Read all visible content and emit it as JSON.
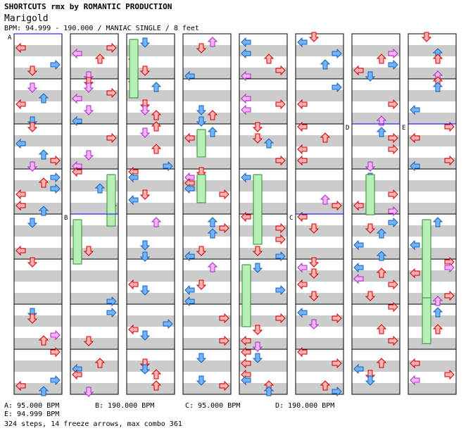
{
  "header": {
    "title": "SHORTCUTS rmx by ROMANTIC PRODUCTION",
    "song": "Marigold",
    "bpm_line": "BPM: 94.999 - 190.000 / MANIAC SINGLE / 8 feet"
  },
  "section_markers": [
    {
      "label": "A",
      "column": 0,
      "measure": 0
    },
    {
      "label": "B",
      "column": 1,
      "measure": 4
    },
    {
      "label": "C",
      "column": 5,
      "measure": 4
    },
    {
      "label": "D",
      "column": 6,
      "measure": 2
    },
    {
      "label": "E",
      "column": 7,
      "measure": 2
    }
  ],
  "legend": [
    {
      "label": "A: 95.000 BPM"
    },
    {
      "label": "B: 190.000 BPM"
    },
    {
      "label": "C: 95.000 BPM"
    },
    {
      "label": "D: 190.000 BPM"
    },
    {
      "label": "E: 94.999 BPM"
    }
  ],
  "summary": "324 steps, 14 freeze arrows, max combo 361",
  "colors": {
    "red_fill": "#ffb0b0",
    "red_stroke": "#cc0000",
    "blue_fill": "#6fb4ff",
    "blue_stroke": "#1a5fb4",
    "pink_fill": "#ffb0ff",
    "pink_stroke": "#a030c0",
    "freeze_fill": "#b8f0b8",
    "freeze_stroke": "#2a8a2a",
    "band_gray": "#cccccc",
    "bpm_line": "#0000ff"
  },
  "chart_data": {
    "type": "table",
    "columns": 8,
    "measures_per_column": 8,
    "lanes": [
      "left",
      "down",
      "up",
      "right"
    ],
    "note_count_total": 324,
    "freeze_count": 14,
    "max_combo": 361
  }
}
